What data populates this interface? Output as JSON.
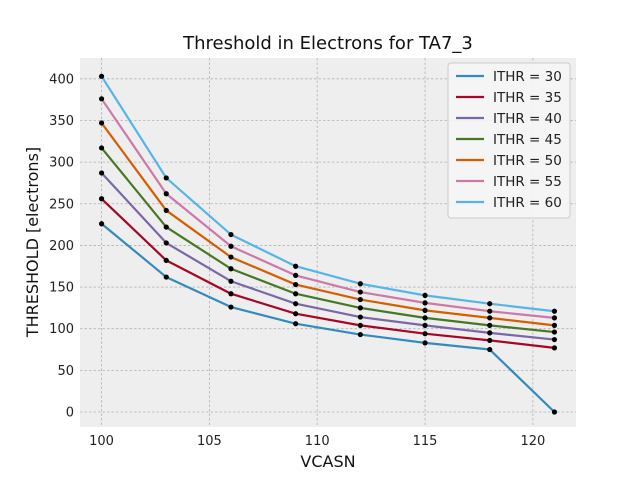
{
  "chart_data": {
    "type": "line",
    "title": "Threshold in Electrons for TA7_3",
    "xlabel": "VCASN",
    "ylabel": "THRESHOLD [electrons]",
    "xlim": [
      99,
      122
    ],
    "ylim": [
      -18,
      425
    ],
    "xticks": [
      100,
      105,
      110,
      115,
      120
    ],
    "yticks": [
      0,
      50,
      100,
      150,
      200,
      250,
      300,
      350,
      400
    ],
    "grid": true,
    "legend_position": "top-right",
    "x": [
      100,
      103,
      106,
      109,
      112,
      115,
      118,
      121
    ],
    "series": [
      {
        "name": "ITHR = 30",
        "color": "#348abd",
        "values": [
          226,
          162,
          126,
          106,
          93,
          83,
          75,
          0
        ]
      },
      {
        "name": "ITHR = 35",
        "color": "#a60628",
        "values": [
          256,
          182,
          142,
          118,
          104,
          94,
          86,
          77
        ]
      },
      {
        "name": "ITHR = 40",
        "color": "#7a68a6",
        "values": [
          287,
          203,
          157,
          130,
          114,
          104,
          95,
          87
        ]
      },
      {
        "name": "ITHR = 45",
        "color": "#467821",
        "values": [
          317,
          222,
          172,
          142,
          125,
          113,
          104,
          96
        ]
      },
      {
        "name": "ITHR = 50",
        "color": "#d55e00",
        "values": [
          347,
          242,
          186,
          153,
          135,
          122,
          113,
          104
        ]
      },
      {
        "name": "ITHR = 55",
        "color": "#cc79a7",
        "values": [
          376,
          262,
          199,
          164,
          144,
          131,
          121,
          113
        ]
      },
      {
        "name": "ITHR = 60",
        "color": "#56b4e9",
        "values": [
          403,
          281,
          213,
          175,
          154,
          140,
          130,
          121
        ]
      }
    ]
  }
}
